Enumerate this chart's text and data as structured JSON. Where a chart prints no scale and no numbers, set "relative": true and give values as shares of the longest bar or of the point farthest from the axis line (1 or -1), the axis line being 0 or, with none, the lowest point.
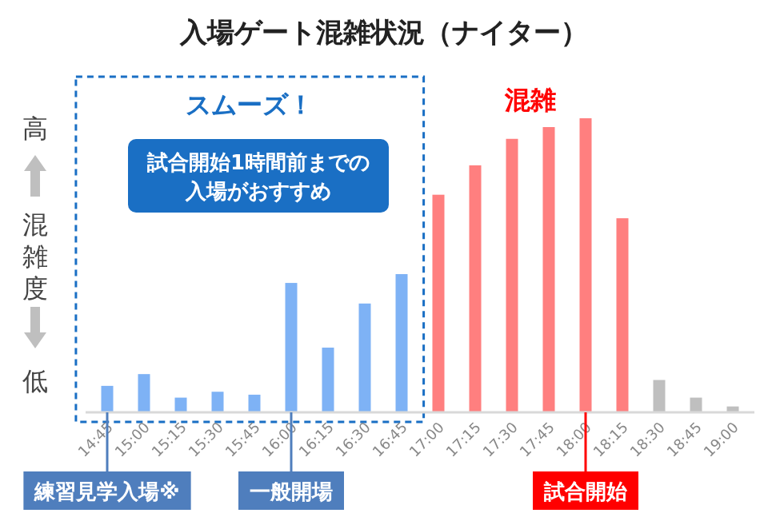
{
  "chart_data": {
    "type": "bar",
    "title": "入場ゲート混雑状況（ナイター）",
    "ylabel": "混雑度",
    "relative": true,
    "categories": [
      "14:45",
      "15:00",
      "15:15",
      "15:30",
      "15:45",
      "16:00",
      "16:15",
      "16:30",
      "16:45",
      "17:00",
      "17:15",
      "17:30",
      "17:45",
      "18:00",
      "18:15",
      "18:30",
      "18:45",
      "19:00"
    ],
    "values": [
      0.09,
      0.13,
      0.05,
      0.07,
      0.06,
      0.44,
      0.22,
      0.37,
      0.47,
      0.74,
      0.84,
      0.93,
      0.97,
      1,
      0.66,
      0.11,
      0.05,
      0.02
    ],
    "colors": [
      "#7eb2f5",
      "#7eb2f5",
      "#7eb2f5",
      "#7eb2f5",
      "#7eb2f5",
      "#7eb2f5",
      "#7eb2f5",
      "#7eb2f5",
      "#7eb2f5",
      "#ff7f7f",
      "#ff7f7f",
      "#ff7f7f",
      "#ff7f7f",
      "#ff7f7f",
      "#ff7f7f",
      "#bfbfbf",
      "#bfbfbf",
      "#bfbfbf"
    ],
    "bands": [
      {
        "axis": "x",
        "from": "14:45",
        "to": "16:45",
        "label": "スムーズ！",
        "color": "#1a6fc4"
      }
    ],
    "annotations": [
      "試合開始1時間前までの入場がおすすめ",
      "高",
      "低",
      "混雑",
      "練習見学入場※",
      "一般開場",
      "試合開始"
    ]
  }
}
